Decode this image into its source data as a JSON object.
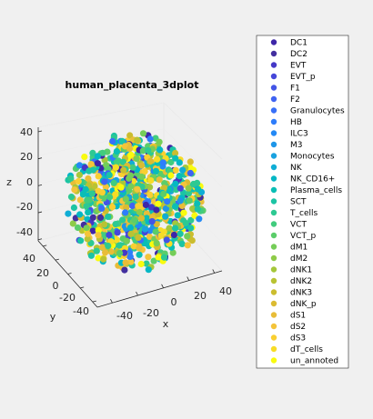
{
  "chart_data": {
    "type": "scatter",
    "projection": "3d",
    "title": "human_placenta_3dplot",
    "xlabel": "x",
    "ylabel": "y",
    "zlabel": "z",
    "x_ticks": [
      "-40",
      "-20",
      "0",
      "20",
      "40"
    ],
    "y_ticks": [
      "-40",
      "-20",
      "0",
      "20",
      "40"
    ],
    "z_ticks": [
      "-40",
      "-20",
      "0",
      "20",
      "40"
    ],
    "xlim": [
      -48,
      48
    ],
    "ylim": [
      -48,
      48
    ],
    "zlim": [
      -48,
      48
    ],
    "grid": true,
    "legend_position": "right",
    "point_cloud": {
      "shape": "sphere",
      "center": [
        0,
        0,
        0
      ],
      "radius": 45
    },
    "series": [
      {
        "name": "DC1",
        "color": "#3e26a8"
      },
      {
        "name": "DC2",
        "color": "#432f9f"
      },
      {
        "name": "EVT",
        "color": "#4538c7"
      },
      {
        "name": "EVT_p",
        "color": "#4647d9"
      },
      {
        "name": "F1",
        "color": "#4355e6"
      },
      {
        "name": "F2",
        "color": "#3f63f2"
      },
      {
        "name": "Granulocytes",
        "color": "#3870f8"
      },
      {
        "name": "HB",
        "color": "#2e7dfb"
      },
      {
        "name": "ILC3",
        "color": "#2389f5"
      },
      {
        "name": "M3",
        "color": "#1e96e8"
      },
      {
        "name": "Monocytes",
        "color": "#19a2e0"
      },
      {
        "name": "NK",
        "color": "#0fadd5"
      },
      {
        "name": "NK_CD16+",
        "color": "#04b7c5"
      },
      {
        "name": "Plasma_cells",
        "color": "#0abeb5"
      },
      {
        "name": "SCT",
        "color": "#1cc4a4"
      },
      {
        "name": "T_cells",
        "color": "#2dc992"
      },
      {
        "name": "VCT",
        "color": "#42cc7e"
      },
      {
        "name": "VCT_p",
        "color": "#5bcd6a"
      },
      {
        "name": "dM1",
        "color": "#75cd58"
      },
      {
        "name": "dM2",
        "color": "#8ecb48"
      },
      {
        "name": "dNK1",
        "color": "#a5c73b"
      },
      {
        "name": "dNK2",
        "color": "#b9c333"
      },
      {
        "name": "dNK3",
        "color": "#cbbd2f"
      },
      {
        "name": "dNK_p",
        "color": "#dbbb32"
      },
      {
        "name": "dS1",
        "color": "#e8bd38"
      },
      {
        "name": "dS2",
        "color": "#f4c43a"
      },
      {
        "name": "dS3",
        "color": "#f9cf31"
      },
      {
        "name": "dT_cells",
        "color": "#f7dc26"
      },
      {
        "name": "un_annoted",
        "color": "#f9fb0e"
      }
    ]
  }
}
